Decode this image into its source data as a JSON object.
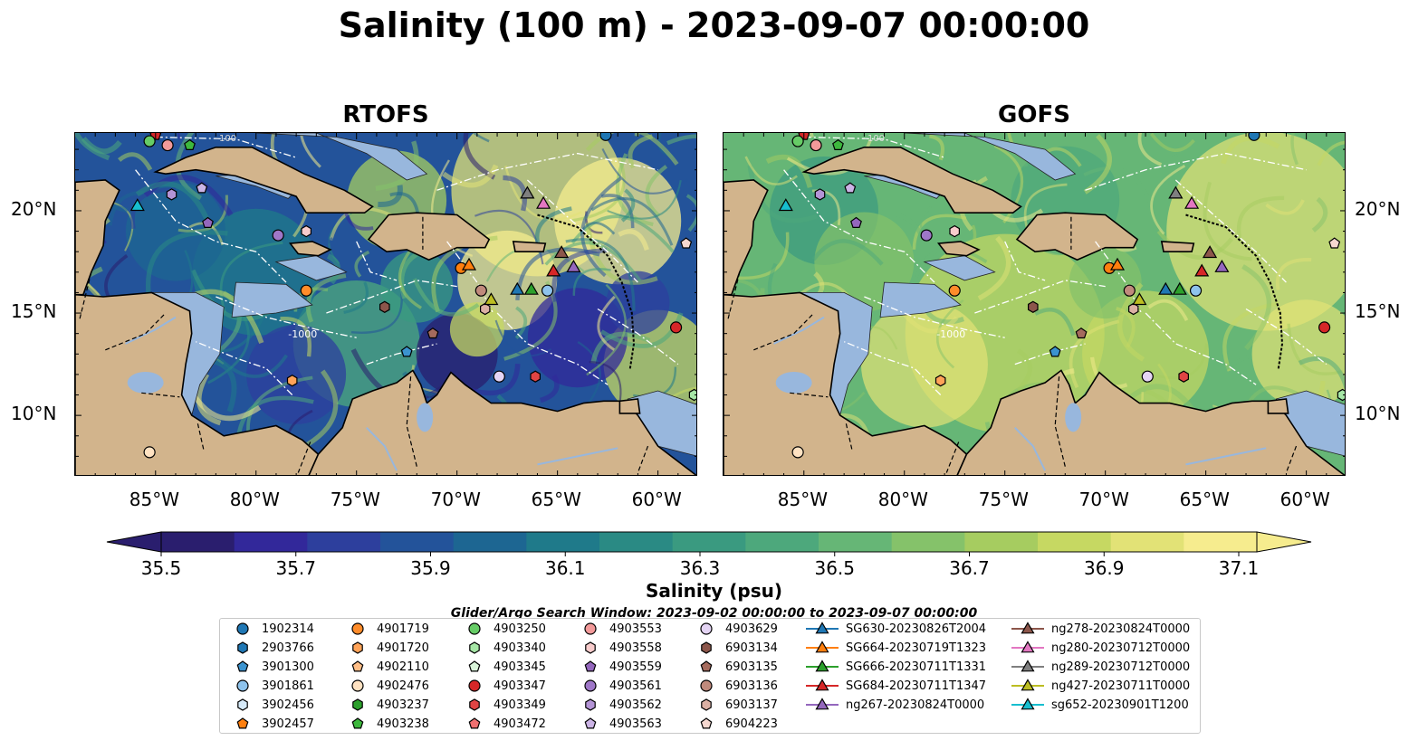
{
  "title": "Salinity (100 m) - 2023-09-07 00:00:00",
  "panels": [
    {
      "name": "RTOFS",
      "style": "rtofs"
    },
    {
      "name": "GOFS",
      "style": "gofs"
    }
  ],
  "axes": {
    "lon_ticks": [
      "85°W",
      "80°W",
      "75°W",
      "70°W",
      "65°W",
      "60°W"
    ],
    "lat_ticks": [
      "20°N",
      "15°N",
      "10°N"
    ]
  },
  "colorbar": {
    "label": "Salinity (psu)",
    "min": 35.5,
    "max": 37.1,
    "ticks": [
      "35.5",
      "35.7",
      "35.9",
      "36.1",
      "36.3",
      "36.5",
      "36.7",
      "36.9",
      "37.1"
    ],
    "colors": [
      "#2a1e6e",
      "#32289a",
      "#2d3f9d",
      "#23539a",
      "#1d6692",
      "#1f7a8a",
      "#2a8a84",
      "#3a9a80",
      "#4da87c",
      "#66b676",
      "#85c26a",
      "#a6cc60",
      "#c6d862",
      "#e2e276",
      "#f6ec8e"
    ]
  },
  "search_window": "Glider/Argo Search Window: 2023-09-02 00:00:00 to 2023-09-07 00:00:00",
  "contour_labels": [
    "-1000",
    "-100"
  ],
  "legend": [
    {
      "label": "1902314",
      "color": "#1f77b4",
      "shape": "circle"
    },
    {
      "label": "2903766",
      "color": "#1f77b4",
      "shape": "hexagon"
    },
    {
      "label": "3901300",
      "color": "#3b93cf",
      "shape": "pentagon"
    },
    {
      "label": "3901861",
      "color": "#8ec3ec",
      "shape": "circle"
    },
    {
      "label": "3902456",
      "color": "#d5e9f8",
      "shape": "hexagon"
    },
    {
      "label": "3902457",
      "color": "#ff7f0e",
      "shape": "pentagon"
    },
    {
      "label": "4901719",
      "color": "#ff8c2a",
      "shape": "circle"
    },
    {
      "label": "4901720",
      "color": "#ffa358",
      "shape": "hexagon"
    },
    {
      "label": "4902110",
      "color": "#ffbe87",
      "shape": "pentagon"
    },
    {
      "label": "4902476",
      "color": "#ffe2c2",
      "shape": "circle"
    },
    {
      "label": "4903237",
      "color": "#2ca02c",
      "shape": "hexagon"
    },
    {
      "label": "4903238",
      "color": "#3db83d",
      "shape": "pentagon"
    },
    {
      "label": "4903250",
      "color": "#66cc66",
      "shape": "circle"
    },
    {
      "label": "4903340",
      "color": "#a6e6a6",
      "shape": "hexagon"
    },
    {
      "label": "4903345",
      "color": "#daf5da",
      "shape": "pentagon"
    },
    {
      "label": "4903347",
      "color": "#d62728",
      "shape": "circle"
    },
    {
      "label": "4903349",
      "color": "#e04444",
      "shape": "hexagon"
    },
    {
      "label": "4903472",
      "color": "#f07070",
      "shape": "pentagon"
    },
    {
      "label": "4903553",
      "color": "#f39a9a",
      "shape": "circle"
    },
    {
      "label": "4903558",
      "color": "#f8cccc",
      "shape": "hexagon"
    },
    {
      "label": "4903559",
      "color": "#9467bd",
      "shape": "pentagon"
    },
    {
      "label": "4903561",
      "color": "#9f77c8",
      "shape": "circle"
    },
    {
      "label": "4903562",
      "color": "#b494d6",
      "shape": "hexagon"
    },
    {
      "label": "4903563",
      "color": "#ccb4e6",
      "shape": "pentagon"
    },
    {
      "label": "4903629",
      "color": "#e4d4f4",
      "shape": "circle"
    },
    {
      "label": "6903134",
      "color": "#8c564b",
      "shape": "hexagon"
    },
    {
      "label": "6903135",
      "color": "#a56b5d",
      "shape": "pentagon"
    },
    {
      "label": "6903136",
      "color": "#c08a7c",
      "shape": "circle"
    },
    {
      "label": "6903137",
      "color": "#dbb0a4",
      "shape": "hexagon"
    },
    {
      "label": "6904223",
      "color": "#f6d8d0",
      "shape": "pentagon"
    },
    {
      "label": "SG630-20230826T2004",
      "color": "#1f77b4",
      "shape": "triangle"
    },
    {
      "label": "SG664-20230719T1323",
      "color": "#ff7f0e",
      "shape": "triangle"
    },
    {
      "label": "SG666-20230711T1331",
      "color": "#2ca02c",
      "shape": "triangle"
    },
    {
      "label": "SG684-20230711T1347",
      "color": "#d62728",
      "shape": "triangle"
    },
    {
      "label": "ng267-20230824T0000",
      "color": "#9467bd",
      "shape": "triangle"
    },
    {
      "label": "ng278-20230824T0000",
      "color": "#8c564b",
      "shape": "triangle"
    },
    {
      "label": "ng280-20230712T0000",
      "color": "#e377c2",
      "shape": "triangle"
    },
    {
      "label": "ng289-20230712T0000",
      "color": "#7f7f7f",
      "shape": "triangle"
    },
    {
      "label": "ng427-20230711T0000",
      "color": "#bcbd22",
      "shape": "triangle"
    },
    {
      "label": "sg652-20230901T1200",
      "color": "#17becf",
      "shape": "triangle"
    }
  ],
  "observations": [
    {
      "lon": -85.0,
      "lat": 23.7,
      "color": "#d62728",
      "shape": "pentagon"
    },
    {
      "lon": -85.3,
      "lat": 23.4,
      "color": "#66cc66",
      "shape": "circle"
    },
    {
      "lon": -84.4,
      "lat": 23.2,
      "color": "#f39a9a",
      "shape": "circle"
    },
    {
      "lon": -83.3,
      "lat": 23.2,
      "color": "#3db83d",
      "shape": "pentagon"
    },
    {
      "lon": -62.6,
      "lat": 23.7,
      "color": "#1f77b4",
      "shape": "circle"
    },
    {
      "lon": -84.2,
      "lat": 20.8,
      "color": "#b494d6",
      "shape": "hexagon"
    },
    {
      "lon": -82.7,
      "lat": 21.1,
      "color": "#ccb4e6",
      "shape": "pentagon"
    },
    {
      "lon": -82.4,
      "lat": 19.4,
      "color": "#9467bd",
      "shape": "pentagon"
    },
    {
      "lon": -78.9,
      "lat": 18.8,
      "color": "#9f77c8",
      "shape": "circle"
    },
    {
      "lon": -77.5,
      "lat": 19.0,
      "color": "#f8cccc",
      "shape": "hexagon"
    },
    {
      "lon": -77.5,
      "lat": 16.1,
      "color": "#ff8c2a",
      "shape": "circle"
    },
    {
      "lon": -73.6,
      "lat": 15.3,
      "color": "#8c564b",
      "shape": "hexagon"
    },
    {
      "lon": -72.5,
      "lat": 13.1,
      "color": "#3b93cf",
      "shape": "pentagon"
    },
    {
      "lon": -71.2,
      "lat": 14.0,
      "color": "#a56b5d",
      "shape": "pentagon"
    },
    {
      "lon": -78.2,
      "lat": 11.7,
      "color": "#ffa358",
      "shape": "hexagon"
    },
    {
      "lon": -68.8,
      "lat": 16.1,
      "color": "#c08a7c",
      "shape": "circle"
    },
    {
      "lon": -68.6,
      "lat": 15.2,
      "color": "#dbb0a4",
      "shape": "hexagon"
    },
    {
      "lon": -65.5,
      "lat": 16.1,
      "color": "#8ec3ec",
      "shape": "circle"
    },
    {
      "lon": -67.9,
      "lat": 11.9,
      "color": "#e4d4f4",
      "shape": "circle"
    },
    {
      "lon": -66.1,
      "lat": 11.9,
      "color": "#e04444",
      "shape": "hexagon"
    },
    {
      "lon": -59.1,
      "lat": 14.3,
      "color": "#d62728",
      "shape": "circle"
    },
    {
      "lon": -85.3,
      "lat": 8.2,
      "color": "#ffe2c2",
      "shape": "circle"
    },
    {
      "lon": -58.6,
      "lat": 18.4,
      "color": "#f6d8d0",
      "shape": "pentagon"
    },
    {
      "lon": -58.2,
      "lat": 11.0,
      "color": "#a6e6a6",
      "shape": "hexagon"
    },
    {
      "lon": -69.8,
      "lat": 17.2,
      "color": "#ff7f0e",
      "shape": "circle"
    },
    {
      "lon": -69.4,
      "lat": 17.3,
      "color": "#ff7f0e",
      "shape": "triangle"
    },
    {
      "lon": -85.9,
      "lat": 20.2,
      "color": "#17becf",
      "shape": "triangle"
    },
    {
      "lon": -67.0,
      "lat": 16.1,
      "color": "#1f77b4",
      "shape": "triangle"
    },
    {
      "lon": -66.3,
      "lat": 16.1,
      "color": "#2ca02c",
      "shape": "triangle"
    },
    {
      "lon": -68.3,
      "lat": 15.6,
      "color": "#bcbd22",
      "shape": "triangle"
    },
    {
      "lon": -65.2,
      "lat": 17.0,
      "color": "#d62728",
      "shape": "triangle"
    },
    {
      "lon": -64.2,
      "lat": 17.2,
      "color": "#9467bd",
      "shape": "triangle"
    },
    {
      "lon": -64.8,
      "lat": 17.9,
      "color": "#8c564b",
      "shape": "triangle"
    },
    {
      "lon": -66.5,
      "lat": 20.8,
      "color": "#7f7f7f",
      "shape": "triangle"
    },
    {
      "lon": -65.7,
      "lat": 20.3,
      "color": "#e377c2",
      "shape": "triangle"
    }
  ]
}
